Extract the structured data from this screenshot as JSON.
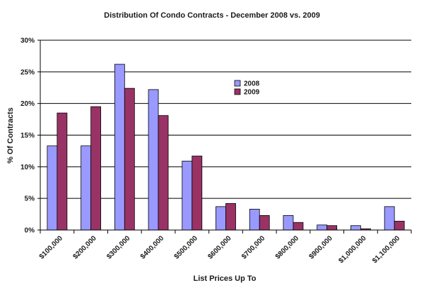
{
  "chart_data": {
    "type": "bar",
    "title": "Distribution Of Condo Contracts - December 2008 vs. 2009",
    "xlabel": "List Prices Up To",
    "ylabel": "% Of Contracts",
    "ylim": [
      0,
      30
    ],
    "yticks": [
      "0%",
      "5%",
      "10%",
      "15%",
      "20%",
      "25%",
      "30%"
    ],
    "categories": [
      "$100,000",
      "$200,000",
      "$300,000",
      "$400,000",
      "$500,000",
      "$600,000",
      "$700,000",
      "$800,000",
      "$900,000",
      "$1,000,000",
      "$1,100,000"
    ],
    "series": [
      {
        "name": "2008",
        "color": "#9999ff",
        "values": [
          13.3,
          13.3,
          26.2,
          22.2,
          10.9,
          3.7,
          3.3,
          2.3,
          0.8,
          0.7,
          3.7
        ]
      },
      {
        "name": "2009",
        "color": "#993366",
        "values": [
          18.5,
          19.5,
          22.4,
          18.1,
          11.7,
          4.2,
          2.3,
          1.2,
          0.7,
          0.2,
          1.4
        ]
      }
    ],
    "grid": true,
    "legend": "inside-top-right"
  }
}
